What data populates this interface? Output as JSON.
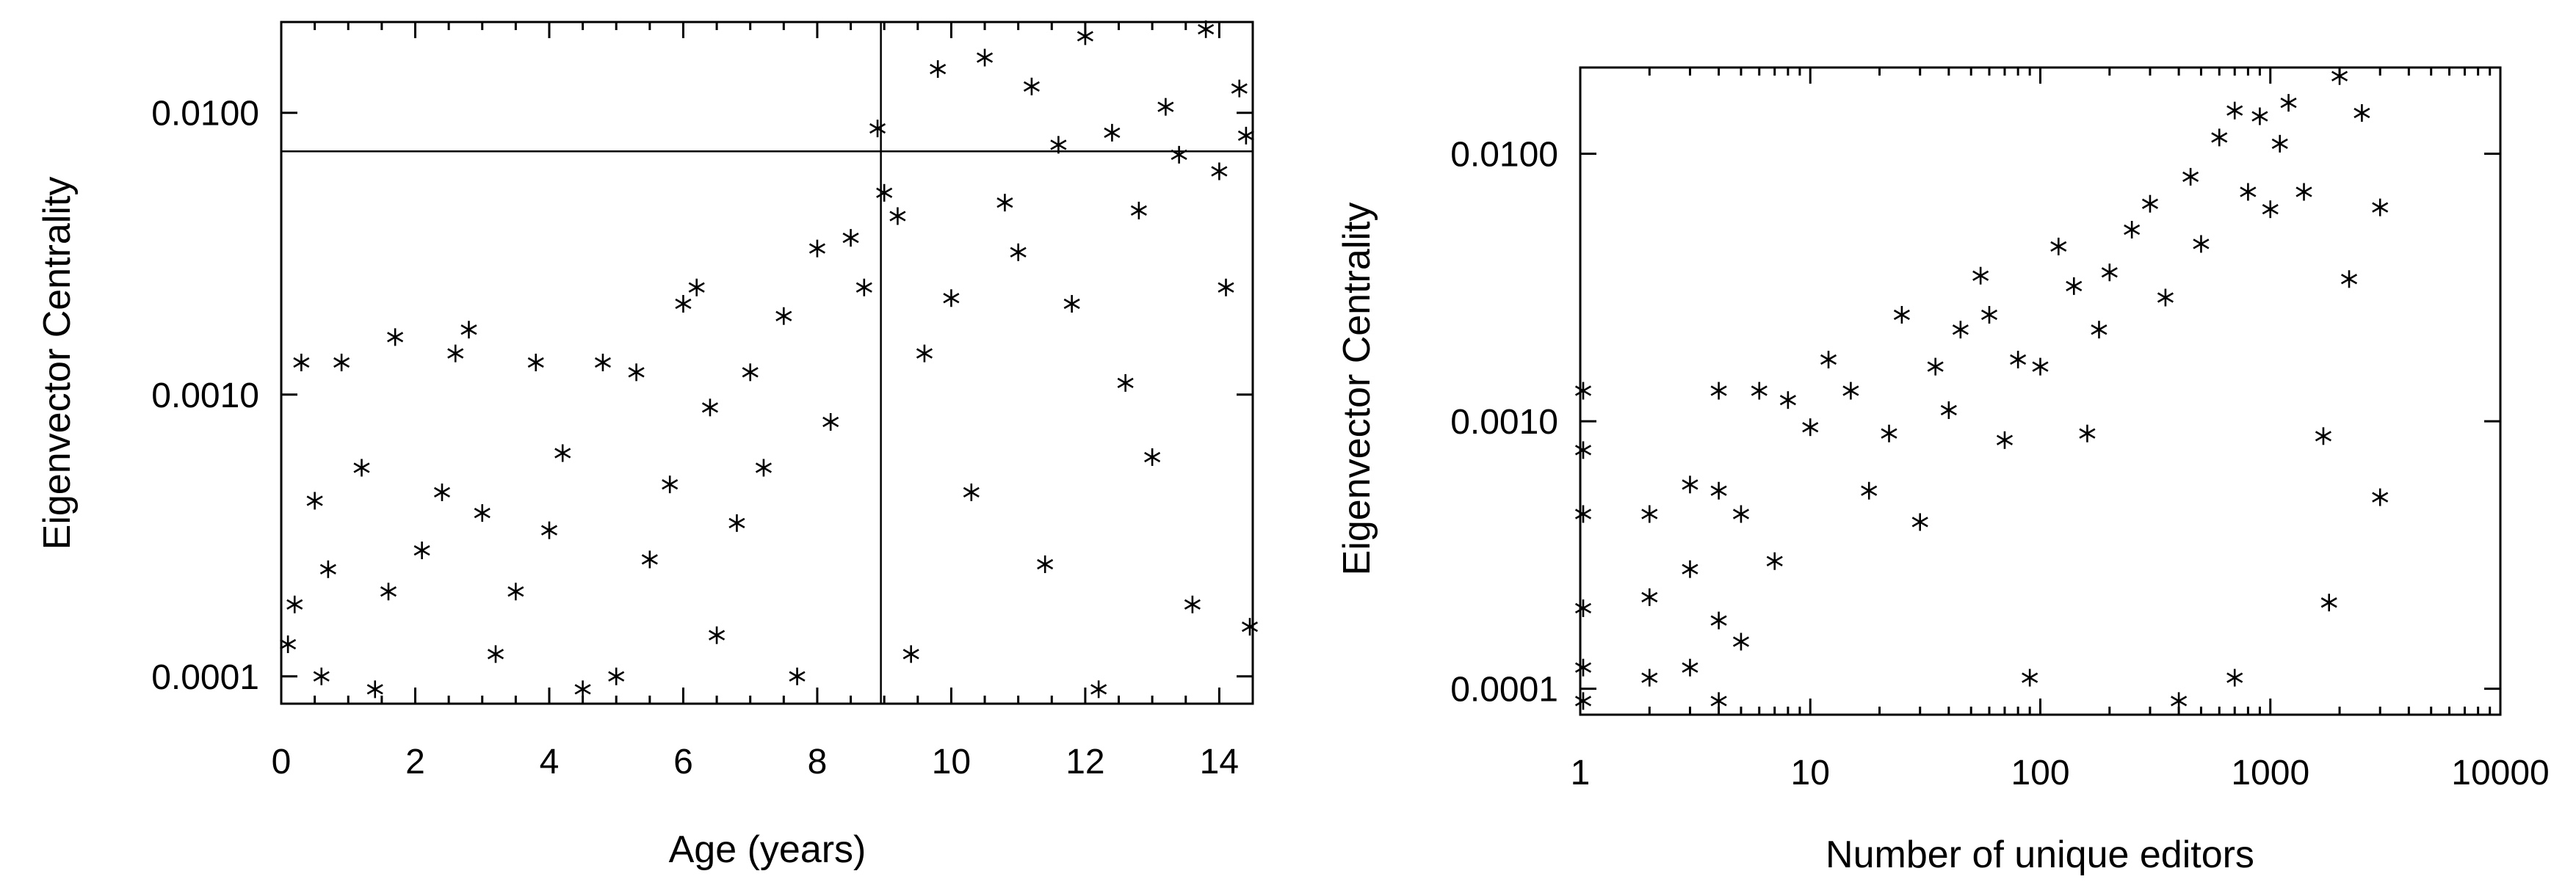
{
  "chart_data": [
    {
      "type": "scatter",
      "xlabel": "Age (years)",
      "ylabel": "Eigenvector Centrality",
      "xscale": "linear",
      "yscale": "log",
      "xlim": [
        0,
        14.5
      ],
      "ylim": [
        8e-05,
        0.021
      ],
      "xticks": [
        0,
        2,
        4,
        6,
        8,
        10,
        12,
        14
      ],
      "xtick_labels": [
        "0",
        "2",
        "4",
        "6",
        "8",
        "10",
        "12",
        "14"
      ],
      "yticks": [
        0.0001,
        0.001,
        0.01
      ],
      "ytick_labels": [
        "0.0001",
        "0.0010",
        "0.0100"
      ],
      "marker": "asterisk",
      "reference_lines": {
        "vertical_x": 8.95,
        "horizontal_y": 0.0073
      },
      "points": [
        [
          0.1,
          0.00013
        ],
        [
          0.2,
          0.00018
        ],
        [
          0.3,
          0.0013
        ],
        [
          0.5,
          0.00042
        ],
        [
          0.6,
          0.0001
        ],
        [
          0.7,
          0.00024
        ],
        [
          0.9,
          0.0013
        ],
        [
          1.2,
          0.00055
        ],
        [
          1.4,
          9e-05
        ],
        [
          1.6,
          0.0002
        ],
        [
          1.7,
          0.0016
        ],
        [
          2.1,
          0.00028
        ],
        [
          2.4,
          0.00045
        ],
        [
          2.6,
          0.0014
        ],
        [
          2.8,
          0.0017
        ],
        [
          3.0,
          0.00038
        ],
        [
          3.2,
          0.00012
        ],
        [
          3.5,
          0.0002
        ],
        [
          3.8,
          0.0013
        ],
        [
          4.0,
          0.00033
        ],
        [
          4.2,
          0.00062
        ],
        [
          4.5,
          9e-05
        ],
        [
          4.8,
          0.0013
        ],
        [
          5.0,
          0.0001
        ],
        [
          5.3,
          0.0012
        ],
        [
          5.5,
          0.00026
        ],
        [
          5.8,
          0.00048
        ],
        [
          6.0,
          0.0021
        ],
        [
          6.2,
          0.0024
        ],
        [
          6.4,
          0.0009
        ],
        [
          6.5,
          0.00014
        ],
        [
          6.8,
          0.00035
        ],
        [
          7.0,
          0.0012
        ],
        [
          7.2,
          0.00055
        ],
        [
          7.5,
          0.0019
        ],
        [
          7.7,
          0.0001
        ],
        [
          8.0,
          0.0033
        ],
        [
          8.2,
          0.0008
        ],
        [
          8.5,
          0.0036
        ],
        [
          8.7,
          0.0024
        ],
        [
          8.9,
          0.0088
        ],
        [
          9.0,
          0.0052
        ],
        [
          9.2,
          0.0043
        ],
        [
          9.4,
          0.00012
        ],
        [
          9.6,
          0.0014
        ],
        [
          9.8,
          0.0143
        ],
        [
          10.0,
          0.0022
        ],
        [
          10.3,
          0.00045
        ],
        [
          10.5,
          0.0157
        ],
        [
          10.8,
          0.0048
        ],
        [
          11.0,
          0.0032
        ],
        [
          11.2,
          0.0124
        ],
        [
          11.4,
          0.00025
        ],
        [
          11.6,
          0.0077
        ],
        [
          11.8,
          0.0021
        ],
        [
          12.0,
          0.0187
        ],
        [
          12.2,
          9e-05
        ],
        [
          12.4,
          0.0085
        ],
        [
          12.6,
          0.0011
        ],
        [
          12.8,
          0.0045
        ],
        [
          13.0,
          0.0006
        ],
        [
          13.2,
          0.0105
        ],
        [
          13.4,
          0.0071
        ],
        [
          13.6,
          0.00018
        ],
        [
          13.8,
          0.0198
        ],
        [
          14.0,
          0.0062
        ],
        [
          14.1,
          0.0024
        ],
        [
          14.3,
          0.0122
        ],
        [
          14.4,
          0.0083
        ],
        [
          14.5,
          0.00015
        ]
      ]
    },
    {
      "type": "scatter",
      "xlabel": "Number of unique editors",
      "ylabel": "Eigenvector Centrality",
      "xscale": "log",
      "yscale": "log",
      "xlim": [
        1,
        10000
      ],
      "ylim": [
        8e-05,
        0.021
      ],
      "xticks": [
        1,
        10,
        100,
        1000,
        10000
      ],
      "xtick_labels": [
        "1",
        "10",
        "100",
        "1000",
        "10000"
      ],
      "yticks": [
        0.0001,
        0.001,
        0.01
      ],
      "ytick_labels": [
        "0.0001",
        "0.0010",
        "0.0100"
      ],
      "marker": "asterisk",
      "points": [
        [
          1,
          0.0013
        ],
        [
          1,
          0.00078
        ],
        [
          1,
          0.00045
        ],
        [
          1,
          0.0002
        ],
        [
          1,
          0.00012
        ],
        [
          1,
          9e-05
        ],
        [
          2,
          0.00045
        ],
        [
          2,
          0.00022
        ],
        [
          2,
          0.00011
        ],
        [
          3,
          0.00058
        ],
        [
          3,
          0.00028
        ],
        [
          3,
          0.00012
        ],
        [
          4,
          0.0013
        ],
        [
          4,
          0.00055
        ],
        [
          4,
          0.00018
        ],
        [
          4,
          9e-05
        ],
        [
          5,
          0.00045
        ],
        [
          5,
          0.00015
        ],
        [
          6,
          0.0013
        ],
        [
          7,
          0.0003
        ],
        [
          8,
          0.0012
        ],
        [
          10,
          0.00095
        ],
        [
          12,
          0.0017
        ],
        [
          15,
          0.0013
        ],
        [
          18,
          0.00055
        ],
        [
          22,
          0.0009
        ],
        [
          25,
          0.0025
        ],
        [
          30,
          0.00042
        ],
        [
          35,
          0.0016
        ],
        [
          40,
          0.0011
        ],
        [
          45,
          0.0022
        ],
        [
          55,
          0.0035
        ],
        [
          60,
          0.0025
        ],
        [
          70,
          0.00085
        ],
        [
          80,
          0.0017
        ],
        [
          90,
          0.00011
        ],
        [
          100,
          0.0016
        ],
        [
          120,
          0.0045
        ],
        [
          140,
          0.0032
        ],
        [
          160,
          0.0009
        ],
        [
          180,
          0.0022
        ],
        [
          200,
          0.0036
        ],
        [
          250,
          0.0052
        ],
        [
          300,
          0.0065
        ],
        [
          350,
          0.0029
        ],
        [
          400,
          9e-05
        ],
        [
          450,
          0.0082
        ],
        [
          500,
          0.0046
        ],
        [
          600,
          0.0115
        ],
        [
          700,
          0.00011
        ],
        [
          700,
          0.0145
        ],
        [
          800,
          0.0072
        ],
        [
          900,
          0.0138
        ],
        [
          1000,
          0.0062
        ],
        [
          1100,
          0.0109
        ],
        [
          1200,
          0.0155
        ],
        [
          1400,
          0.0072
        ],
        [
          1700,
          0.00088
        ],
        [
          1800,
          0.00021
        ],
        [
          2000,
          0.0195
        ],
        [
          2200,
          0.0034
        ],
        [
          2500,
          0.0142
        ],
        [
          3000,
          0.0063
        ],
        [
          3000,
          0.00052
        ]
      ]
    }
  ]
}
